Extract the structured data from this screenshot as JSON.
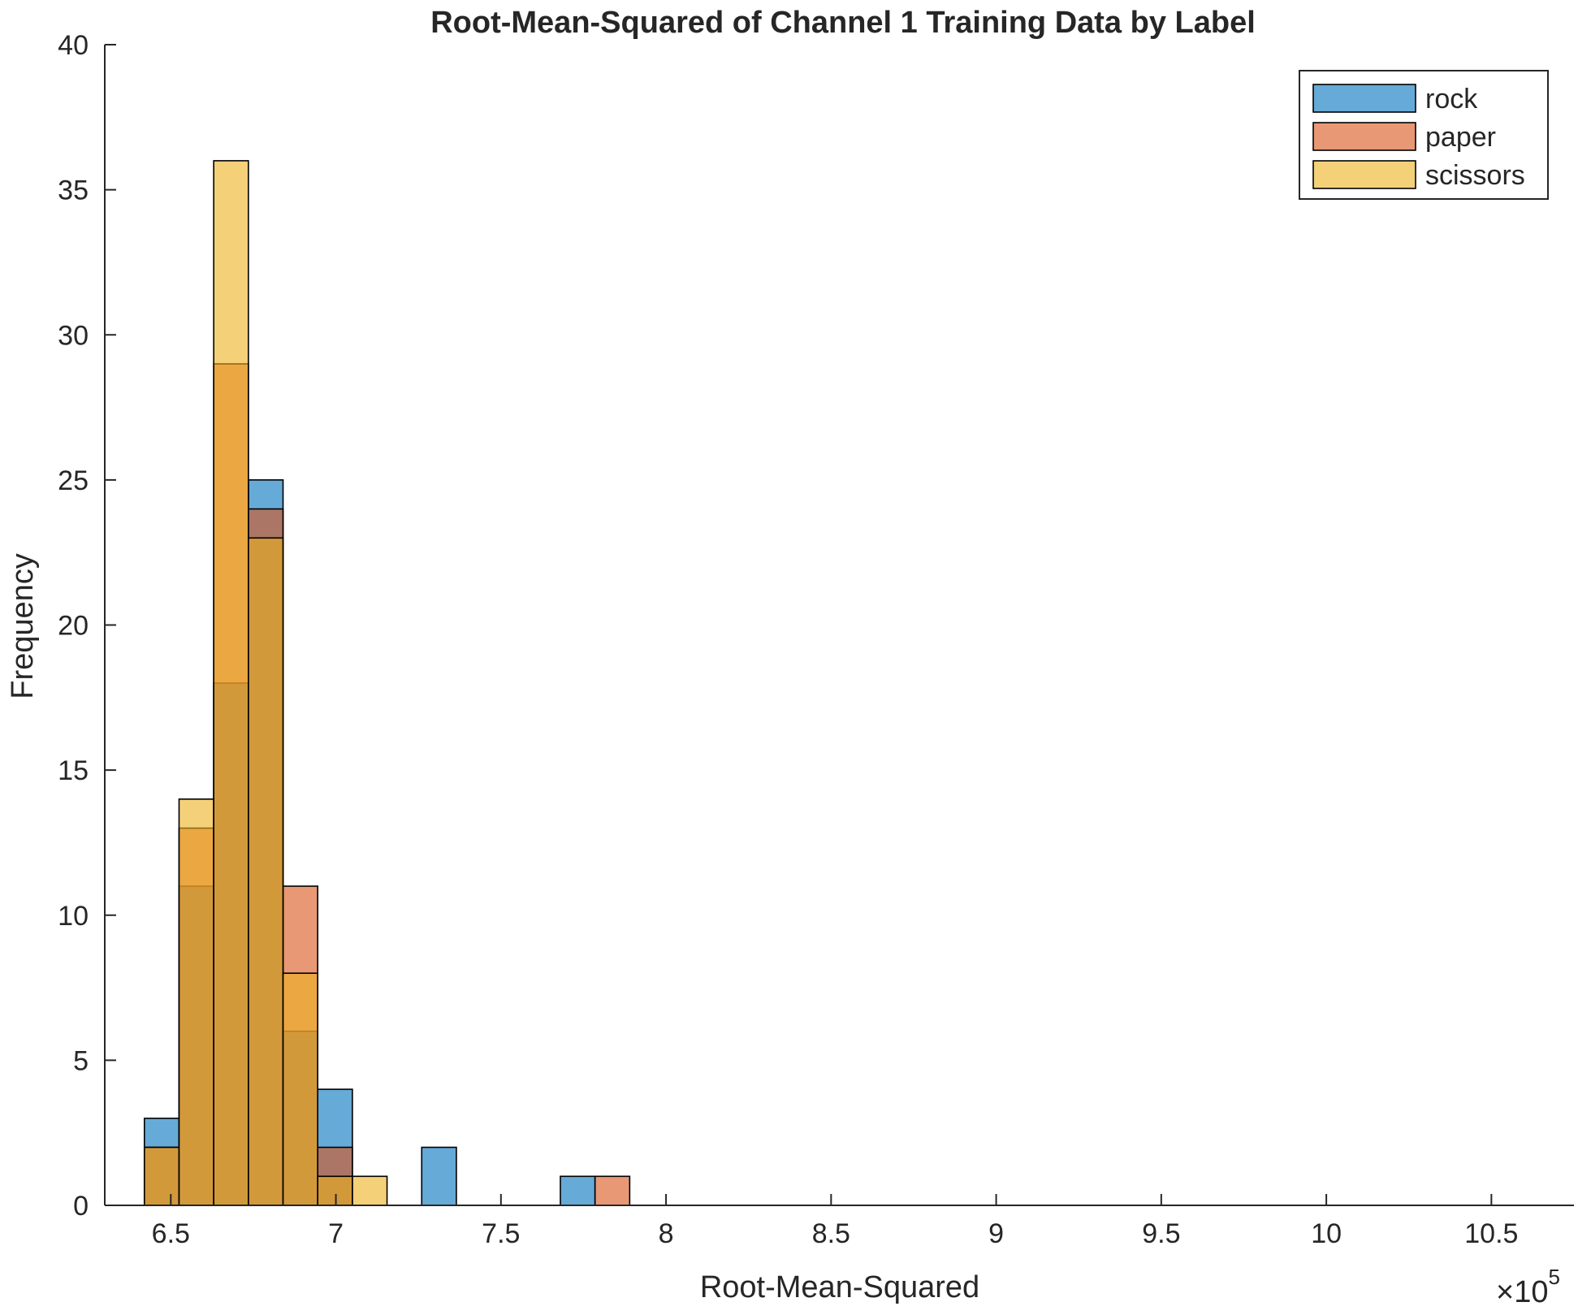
{
  "chart_data": {
    "type": "bar",
    "title": "Root-Mean-Squared of Channel 1 Training Data by Label",
    "xlabel": "Root-Mean-Squared",
    "ylabel": "Frequency",
    "x_exponent_label": "×10",
    "x_exponent_power": "5",
    "xlim": [
      6.3,
      10.75
    ],
    "ylim": [
      0,
      40
    ],
    "grid": false,
    "legend_position": "top-right",
    "x_ticks": [
      6.5,
      7,
      7.5,
      8,
      8.5,
      9,
      9.5,
      10,
      10.5
    ],
    "x_tick_labels": [
      "6.5",
      "7",
      "7.5",
      "8",
      "8.5",
      "9",
      "9.5",
      "10",
      "10.5"
    ],
    "y_ticks": [
      0,
      5,
      10,
      15,
      20,
      25,
      30,
      35,
      40
    ],
    "y_tick_labels": [
      "0",
      "5",
      "10",
      "15",
      "20",
      "25",
      "30",
      "35",
      "40"
    ],
    "bin_edges": [
      6.42,
      6.525,
      6.63,
      6.735,
      6.84,
      6.945,
      7.05,
      7.155,
      7.26,
      7.365,
      7.47,
      7.575,
      7.68,
      7.785,
      7.89,
      7.995,
      8.1,
      8.205,
      8.31,
      8.415,
      8.52,
      8.625,
      8.73,
      8.835,
      8.94,
      9.045,
      9.15,
      9.255,
      9.36,
      9.465,
      9.57,
      9.675,
      9.78,
      9.885,
      9.99,
      10.095,
      10.2,
      10.305,
      10.41,
      10.515,
      10.62
    ],
    "series": [
      {
        "name": "rock",
        "color": "#0072BD",
        "values": [
          3,
          11,
          18,
          25,
          6,
          4,
          0,
          0,
          2,
          0,
          0,
          0,
          1,
          0,
          0,
          0,
          0,
          0,
          0,
          0,
          0,
          0,
          0,
          0,
          0,
          0,
          0,
          0,
          0,
          0,
          0,
          0,
          0,
          0,
          0,
          0,
          0,
          0,
          0,
          0
        ]
      },
      {
        "name": "paper",
        "color": "#D95319",
        "values": [
          2,
          13,
          29,
          24,
          11,
          2,
          0,
          0,
          0,
          0,
          0,
          0,
          0,
          1,
          0,
          0,
          0,
          0,
          0,
          0,
          0,
          0,
          0,
          0,
          0,
          0,
          0,
          0,
          0,
          0,
          0,
          0,
          0,
          0,
          0,
          0,
          0,
          0,
          0,
          0
        ]
      },
      {
        "name": "scissors",
        "color": "#EDB120",
        "values": [
          2,
          14,
          36,
          23,
          8,
          1,
          1,
          0,
          0,
          0,
          0,
          0,
          0,
          0,
          0,
          0,
          0,
          0,
          0,
          0,
          0,
          0,
          0,
          0,
          0,
          0,
          0,
          0,
          0,
          0,
          0,
          0,
          0,
          0,
          0,
          0,
          0,
          0,
          0,
          0
        ]
      }
    ]
  }
}
